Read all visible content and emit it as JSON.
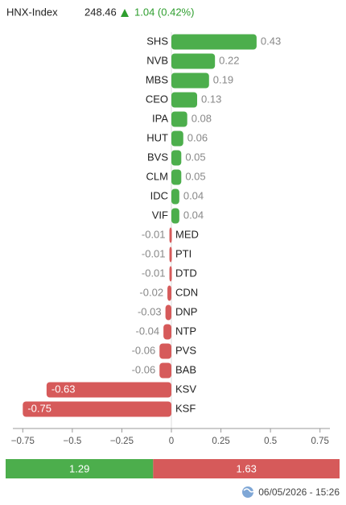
{
  "header": {
    "name": "HNX-Index",
    "value": "248.46",
    "change": "1.04 (0.42%)"
  },
  "chart_data": {
    "type": "bar",
    "orientation": "horizontal",
    "categories": [
      "SHS",
      "NVB",
      "MBS",
      "CEO",
      "IPA",
      "HUT",
      "BVS",
      "CLM",
      "IDC",
      "VIF",
      "MED",
      "PTI",
      "DTD",
      "CDN",
      "DNP",
      "NTP",
      "PVS",
      "BAB",
      "KSV",
      "KSF"
    ],
    "values": [
      0.43,
      0.22,
      0.19,
      0.13,
      0.08,
      0.06,
      0.05,
      0.05,
      0.04,
      0.04,
      -0.01,
      -0.01,
      -0.01,
      -0.02,
      -0.03,
      -0.04,
      -0.06,
      -0.06,
      -0.63,
      -0.75
    ],
    "colors": {
      "positive": "#4cae4c",
      "negative": "#d65a5a"
    },
    "xlim": [
      -0.8,
      0.8
    ],
    "xticks": [
      {
        "value": -0.75,
        "label": "−0.75"
      },
      {
        "value": -0.5,
        "label": "−0.5"
      },
      {
        "value": -0.25,
        "label": "−0.25"
      },
      0,
      0.25,
      0.5,
      0.75
    ],
    "summary": {
      "positive": 1.29,
      "negative": 1.63
    }
  },
  "footer": {
    "timestamp": "06/05/2026 - 15:26"
  }
}
